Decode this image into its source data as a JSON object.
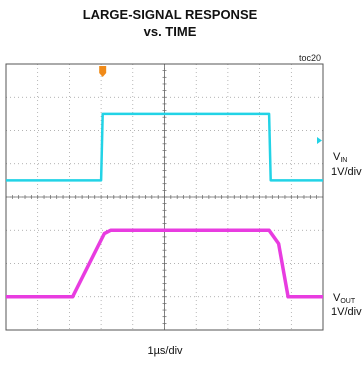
{
  "title": {
    "line1": "LARGE-SIGNAL RESPONSE",
    "line2": "vs. TIME"
  },
  "tag": "toc20",
  "chart_data": {
    "type": "line",
    "xlabel": "1µs/div",
    "xlim": [
      0,
      10
    ],
    "grid": true,
    "grid_divisions": {
      "x": 10,
      "y": 8
    },
    "colors": {
      "VIN": "#22d3e6",
      "VOUT": "#e83ce0",
      "grid": "#9a9a9a",
      "frame": "#555555",
      "marker": "#f08a18"
    },
    "series": [
      {
        "name": "VIN",
        "subscript": "IN",
        "scale": "1V/div",
        "x": [
          0.0,
          3.0,
          3.05,
          8.3,
          8.35,
          10.0
        ],
        "y": [
          -1.0,
          -1.0,
          1.0,
          1.0,
          -1.0,
          -1.0
        ]
      },
      {
        "name": "VOUT",
        "subscript": "OUT",
        "scale": "1V/div",
        "x": [
          0.0,
          2.1,
          3.1,
          3.3,
          8.3,
          8.6,
          8.9,
          10.0
        ],
        "y": [
          -1.0,
          -1.0,
          0.9,
          1.0,
          1.0,
          0.6,
          -1.0,
          -1.0
        ]
      }
    ]
  }
}
